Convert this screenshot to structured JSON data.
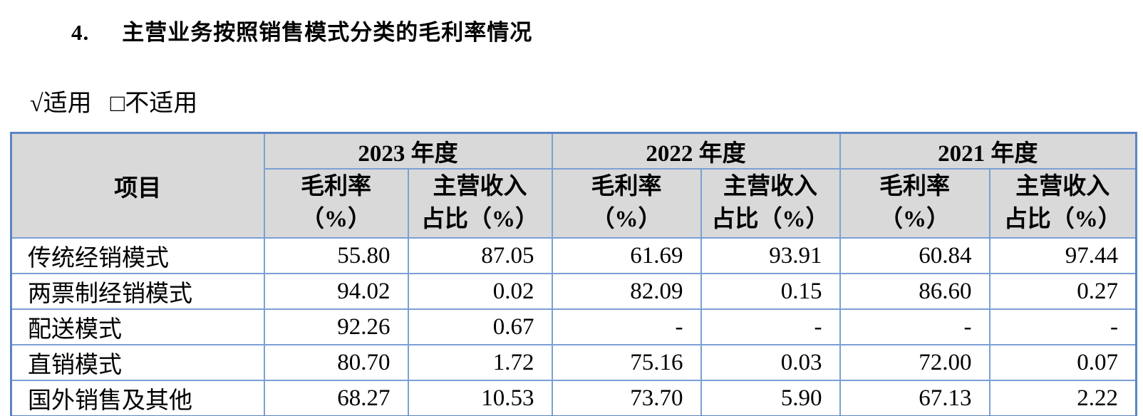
{
  "title": {
    "number": "4.",
    "text": "主营业务按照销售模式分类的毛利率情况"
  },
  "applicability": {
    "applicable": "√适用",
    "not_applicable": "□不适用"
  },
  "table": {
    "corner_header": "项目",
    "year_groups": [
      {
        "label": "2023 年度"
      },
      {
        "label": "2022 年度"
      },
      {
        "label": "2021 年度"
      }
    ],
    "sub_headers": [
      {
        "line1": "毛利率",
        "line2": "（%）"
      },
      {
        "line1": "主营收入",
        "line2": "占比（%）"
      }
    ],
    "rows": [
      {
        "item": "传统经销模式",
        "values": [
          "55.80",
          "87.05",
          "61.69",
          "93.91",
          "60.84",
          "97.44"
        ]
      },
      {
        "item": "两票制经销模式",
        "values": [
          "94.02",
          "0.02",
          "82.09",
          "0.15",
          "86.60",
          "0.27"
        ]
      },
      {
        "item": "配送模式",
        "values": [
          "92.26",
          "0.67",
          "-",
          "-",
          "-",
          "-"
        ]
      },
      {
        "item": "直销模式",
        "values": [
          "80.70",
          "1.72",
          "75.16",
          "0.03",
          "72.00",
          "0.07"
        ]
      },
      {
        "item": "国外销售及其他",
        "values": [
          "68.27",
          "10.53",
          "73.70",
          "5.90",
          "67.13",
          "2.22"
        ]
      }
    ],
    "colors": {
      "header_bg": "#d9d9d9",
      "border_inner": "#7ba0d4",
      "border_outer": "#5b86c2"
    }
  }
}
